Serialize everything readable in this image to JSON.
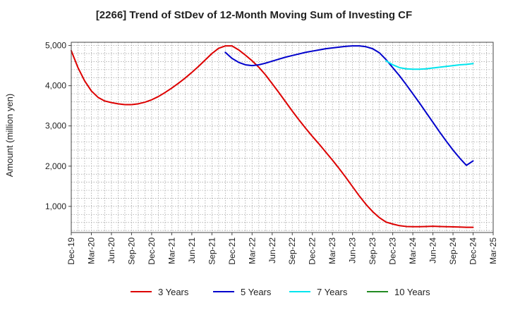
{
  "chart_data": {
    "type": "line",
    "title": "[2266]  Trend of StDev of 12-Month Moving Sum of Investing CF",
    "ylabel": "Amount (million yen)",
    "xlabel": "",
    "x_tick_labels": [
      "Dec-19",
      "Mar-20",
      "Jun-20",
      "Sep-20",
      "Dec-20",
      "Mar-21",
      "Jun-21",
      "Sep-21",
      "Dec-21",
      "Mar-22",
      "Jun-22",
      "Sep-22",
      "Dec-22",
      "Mar-23",
      "Jun-23",
      "Sep-23",
      "Dec-23",
      "Mar-24",
      "Jun-24",
      "Sep-24",
      "Dec-24",
      "Mar-25"
    ],
    "y_ticks": [
      1000,
      2000,
      3000,
      4000,
      5000
    ],
    "y_tick_labels": [
      "1,000",
      "2,000",
      "3,000",
      "4,000",
      "5,000"
    ],
    "ylim": [
      350,
      5080
    ],
    "grid": true,
    "legend_position": "bottom",
    "series": [
      {
        "name": "3 Years",
        "color": "#dd0000",
        "x": [
          "2019-12",
          "2020-01",
          "2020-02",
          "2020-03",
          "2020-04",
          "2020-05",
          "2020-06",
          "2020-07",
          "2020-08",
          "2020-09",
          "2020-10",
          "2020-11",
          "2020-12",
          "2021-01",
          "2021-02",
          "2021-03",
          "2021-04",
          "2021-05",
          "2021-06",
          "2021-07",
          "2021-08",
          "2021-09",
          "2021-10",
          "2021-11",
          "2021-12",
          "2022-01",
          "2022-02",
          "2022-03",
          "2022-04",
          "2022-05",
          "2022-06",
          "2022-07",
          "2022-08",
          "2022-09",
          "2022-10",
          "2022-11",
          "2022-12",
          "2023-01",
          "2023-02",
          "2023-03",
          "2023-04",
          "2023-05",
          "2023-06",
          "2023-07",
          "2023-08",
          "2023-09",
          "2023-10",
          "2023-11",
          "2023-12",
          "2024-01",
          "2024-02",
          "2024-03",
          "2024-04",
          "2024-05",
          "2024-06",
          "2024-07",
          "2024-08",
          "2024-09",
          "2024-10",
          "2024-11",
          "2024-12"
        ],
        "values": [
          4870,
          4450,
          4120,
          3870,
          3710,
          3620,
          3580,
          3550,
          3530,
          3530,
          3550,
          3590,
          3650,
          3730,
          3830,
          3940,
          4060,
          4190,
          4330,
          4480,
          4640,
          4800,
          4930,
          4990,
          4990,
          4890,
          4760,
          4620,
          4460,
          4270,
          4050,
          3830,
          3600,
          3370,
          3150,
          2940,
          2740,
          2550,
          2350,
          2150,
          1940,
          1720,
          1490,
          1260,
          1050,
          870,
          720,
          610,
          560,
          520,
          500,
          495,
          495,
          500,
          505,
          500,
          495,
          490,
          485,
          480,
          480
        ]
      },
      {
        "name": "5 Years",
        "color": "#0000cc",
        "x": [
          "2021-11",
          "2021-12",
          "2022-01",
          "2022-02",
          "2022-03",
          "2022-04",
          "2022-05",
          "2022-06",
          "2022-07",
          "2022-08",
          "2022-09",
          "2022-10",
          "2022-11",
          "2022-12",
          "2023-01",
          "2023-02",
          "2023-03",
          "2023-04",
          "2023-05",
          "2023-06",
          "2023-07",
          "2023-08",
          "2023-09",
          "2023-10",
          "2023-11",
          "2023-12",
          "2024-01",
          "2024-02",
          "2024-03",
          "2024-04",
          "2024-05",
          "2024-06",
          "2024-07",
          "2024-08",
          "2024-09",
          "2024-10",
          "2024-11",
          "2024-12"
        ],
        "values": [
          4830,
          4680,
          4580,
          4520,
          4500,
          4520,
          4560,
          4610,
          4660,
          4710,
          4750,
          4790,
          4830,
          4860,
          4890,
          4920,
          4940,
          4960,
          4980,
          4990,
          4990,
          4970,
          4920,
          4820,
          4650,
          4450,
          4250,
          4030,
          3800,
          3570,
          3330,
          3090,
          2850,
          2620,
          2400,
          2200,
          2020,
          2130
        ]
      },
      {
        "name": "7 Years",
        "color": "#00e5ee",
        "x": [
          "2023-11",
          "2023-12",
          "2024-01",
          "2024-02",
          "2024-03",
          "2024-04",
          "2024-05",
          "2024-06",
          "2024-07",
          "2024-08",
          "2024-09",
          "2024-10",
          "2024-11",
          "2024-12"
        ],
        "values": [
          4620,
          4520,
          4450,
          4420,
          4410,
          4410,
          4420,
          4440,
          4460,
          4480,
          4500,
          4520,
          4530,
          4550
        ]
      },
      {
        "name": "10 Years",
        "color": "#228b22",
        "x": [],
        "values": []
      }
    ]
  }
}
